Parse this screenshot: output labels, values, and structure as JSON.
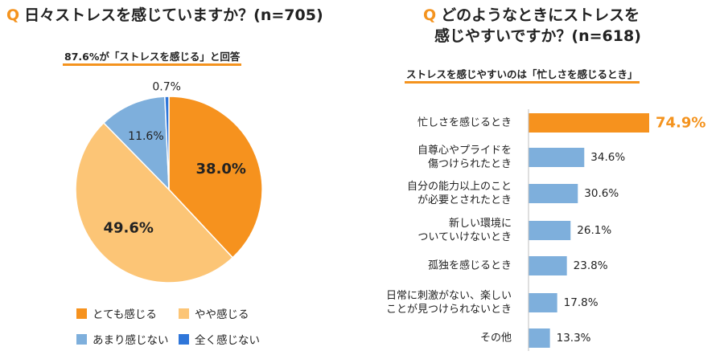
{
  "left": {
    "q_mark": "Q",
    "title": "日々ストレスを感じていますか？(n=705)",
    "subtitle": "87.6%が「ストレスを感じる」と回答"
  },
  "right": {
    "q_mark": "Q",
    "title_line1": "どのようなときにストレスを",
    "title_line2": "感じやすいですか？(n=618)",
    "subtitle": "ストレスを感じやすいのは「忙しさを感じるとき」"
  },
  "colors": {
    "orange": "#f6921e",
    "light_orange": "#fcc576",
    "light_blue": "#7eafdc",
    "blue": "#2f76d9",
    "bar_blue": "#7eafdc",
    "bar_highlight": "#f6921e",
    "accent_text": "#f4931e"
  },
  "chart_data": [
    {
      "type": "pie",
      "categories": [
        "とても感じる",
        "やや感じる",
        "あまり感じない",
        "全く感じない"
      ],
      "values": [
        38.0,
        49.6,
        11.6,
        0.7
      ],
      "labels": [
        "38.0%",
        "49.6%",
        "11.6%",
        "0.7%"
      ],
      "colors": [
        "#f6921e",
        "#fcc576",
        "#7eafdc",
        "#2f76d9"
      ],
      "legend": [
        "とても感じる",
        "やや感じる",
        "あまり感じない",
        "全く感じない"
      ],
      "start": "12 o'clock, clockwise"
    },
    {
      "type": "bar",
      "orientation": "horizontal",
      "categories": [
        [
          "忙しさを感じるとき"
        ],
        [
          "自尊心やプライドを",
          "傷つけられたとき"
        ],
        [
          "自分の能力以上のこと",
          "が必要とされたとき"
        ],
        [
          "新しい環境に",
          "ついていけないとき"
        ],
        [
          "孤独を感じるとき"
        ],
        [
          "日常に刺激がない、楽しい",
          "ことが見つけられないとき"
        ],
        [
          "その他"
        ]
      ],
      "values": [
        74.9,
        34.6,
        30.6,
        26.1,
        23.8,
        17.8,
        13.3
      ],
      "labels": [
        "74.9%",
        "34.6%",
        "30.6%",
        "26.1%",
        "23.8%",
        "17.8%",
        "13.3%"
      ],
      "highlight_index": 0
    }
  ]
}
